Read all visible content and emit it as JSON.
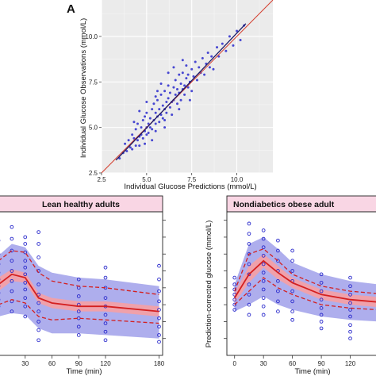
{
  "figure": {
    "panel_letter": "A"
  },
  "chart_data": [
    {
      "type": "scatter",
      "xlabel": "Individual Glucose Predictions (mmol/L)",
      "ylabel": "Individual Glucose Observations (mmol/L)",
      "xlim": [
        2.5,
        12.0
      ],
      "ylim": [
        2.5,
        12.0
      ],
      "xticks": [
        2.5,
        5.0,
        7.5,
        10.0
      ],
      "xtick_labels": [
        "2.5",
        "5.0",
        "7.5",
        "10.0"
      ],
      "yticks": [
        2.5,
        5.0,
        7.5,
        10.0
      ],
      "ytick_labels": [
        "2.5",
        "5.0",
        "7.5",
        "10.0"
      ],
      "background": "#ebebeb",
      "grid": true,
      "point_color": "#2a2acc",
      "identity_line_color": "#d43c2c",
      "trend_line_color": "#1a1a66",
      "points": [
        [
          3.5,
          3.3
        ],
        [
          3.7,
          3.6
        ],
        [
          3.8,
          4.1
        ],
        [
          3.9,
          3.7
        ],
        [
          4.0,
          4.3
        ],
        [
          4.1,
          3.9
        ],
        [
          4.2,
          4.6
        ],
        [
          4.2,
          3.8
        ],
        [
          4.3,
          4.4
        ],
        [
          4.4,
          4.0
        ],
        [
          4.4,
          4.9
        ],
        [
          4.5,
          4.3
        ],
        [
          4.5,
          5.2
        ],
        [
          4.6,
          4.5
        ],
        [
          4.6,
          4.0
        ],
        [
          4.7,
          5.0
        ],
        [
          4.7,
          4.6
        ],
        [
          4.8,
          5.4
        ],
        [
          4.8,
          4.4
        ],
        [
          4.9,
          4.8
        ],
        [
          4.9,
          5.6
        ],
        [
          5.0,
          5.0
        ],
        [
          5.0,
          4.6
        ],
        [
          5.0,
          5.8
        ],
        [
          5.1,
          5.2
        ],
        [
          5.1,
          4.7
        ],
        [
          5.2,
          5.5
        ],
        [
          5.2,
          5.0
        ],
        [
          5.3,
          6.0
        ],
        [
          5.3,
          4.9
        ],
        [
          5.4,
          5.4
        ],
        [
          5.4,
          6.3
        ],
        [
          5.5,
          5.2
        ],
        [
          5.5,
          5.8
        ],
        [
          5.5,
          4.8
        ],
        [
          5.6,
          5.6
        ],
        [
          5.6,
          6.5
        ],
        [
          5.7,
          5.3
        ],
        [
          5.7,
          6.0
        ],
        [
          5.8,
          5.7
        ],
        [
          5.8,
          6.8
        ],
        [
          5.9,
          5.5
        ],
        [
          5.9,
          6.2
        ],
        [
          6.0,
          6.0
        ],
        [
          6.0,
          7.0
        ],
        [
          6.0,
          5.4
        ],
        [
          6.1,
          6.4
        ],
        [
          6.1,
          5.8
        ],
        [
          6.2,
          6.6
        ],
        [
          6.2,
          7.3
        ],
        [
          6.3,
          6.1
        ],
        [
          6.3,
          6.9
        ],
        [
          6.4,
          6.4
        ],
        [
          6.4,
          5.7
        ],
        [
          6.5,
          7.2
        ],
        [
          6.5,
          6.5
        ],
        [
          6.6,
          6.8
        ],
        [
          6.6,
          7.6
        ],
        [
          6.7,
          6.3
        ],
        [
          6.7,
          7.1
        ],
        [
          6.8,
          6.9
        ],
        [
          6.8,
          7.9
        ],
        [
          6.9,
          7.4
        ],
        [
          6.9,
          6.5
        ],
        [
          7.0,
          7.1
        ],
        [
          7.0,
          8.0
        ],
        [
          7.1,
          7.3
        ],
        [
          7.1,
          6.8
        ],
        [
          7.2,
          7.7
        ],
        [
          7.2,
          8.4
        ],
        [
          7.3,
          7.2
        ],
        [
          7.3,
          7.9
        ],
        [
          7.4,
          7.5
        ],
        [
          7.5,
          8.2
        ],
        [
          7.5,
          7.0
        ],
        [
          7.6,
          7.8
        ],
        [
          7.7,
          8.6
        ],
        [
          7.8,
          7.6
        ],
        [
          7.9,
          8.3
        ],
        [
          8.0,
          8.0
        ],
        [
          8.1,
          8.8
        ],
        [
          8.2,
          7.9
        ],
        [
          8.3,
          8.5
        ],
        [
          8.4,
          9.1
        ],
        [
          8.5,
          8.3
        ],
        [
          8.6,
          8.9
        ],
        [
          8.7,
          8.2
        ],
        [
          8.9,
          9.4
        ],
        [
          9.0,
          8.9
        ],
        [
          9.2,
          9.6
        ],
        [
          9.4,
          9.2
        ],
        [
          9.6,
          10.0
        ],
        [
          9.8,
          9.5
        ],
        [
          10.0,
          10.3
        ],
        [
          10.2,
          9.8
        ],
        [
          10.4,
          10.6
        ],
        [
          5.0,
          6.4
        ],
        [
          5.6,
          7.0
        ],
        [
          6.2,
          8.0
        ],
        [
          4.6,
          5.9
        ],
        [
          5.3,
          4.3
        ],
        [
          6.0,
          5.0
        ],
        [
          6.8,
          6.0
        ],
        [
          7.4,
          6.5
        ],
        [
          4.3,
          5.3
        ],
        [
          5.8,
          7.4
        ],
        [
          6.5,
          8.3
        ],
        [
          7.0,
          8.7
        ],
        [
          4.9,
          4.1
        ],
        [
          5.5,
          6.7
        ]
      ],
      "trend_line": [
        [
          3.3,
          3.2
        ],
        [
          10.5,
          10.7
        ]
      ]
    },
    {
      "type": "line",
      "title": "Lean healthy adults",
      "xlabel": "Time (min)",
      "ylabel": "",
      "x": [
        0,
        15,
        30,
        45,
        60,
        90,
        120,
        180
      ],
      "xticks": [
        30,
        60,
        90,
        120,
        180
      ],
      "xtick_labels": [
        "30",
        "60",
        "90",
        "120",
        "180"
      ],
      "xlim": [
        0,
        184
      ],
      "ylim": [
        2.0,
        10.5
      ],
      "strip_fill": "#f9d6e4",
      "band_color": "#9a9ae8",
      "median_band_color": "#f2a0a8",
      "line_color": "#d42020",
      "point_color": "#2a2acc",
      "series": [
        {
          "values": [
            6.2,
            6.8,
            6.6,
            5.4,
            5.1,
            4.9,
            4.9,
            4.6
          ]
        },
        {
          "values": [
            7.6,
            8.2,
            8.1,
            6.9,
            6.4,
            6.1,
            6.0,
            5.6
          ]
        },
        {
          "values": [
            5.0,
            5.3,
            5.1,
            4.3,
            4.1,
            4.2,
            4.1,
            3.9
          ]
        },
        {
          "values": [
            7.9,
            8.6,
            8.4,
            7.3,
            6.9,
            6.6,
            6.5,
            6.1
          ]
        },
        {
          "values": [
            4.3,
            4.5,
            4.4,
            3.6,
            3.3,
            3.3,
            3.2,
            3.0
          ]
        },
        {
          "values": [
            6.6,
            7.1,
            6.9,
            5.7,
            5.4,
            5.2,
            5.2,
            4.9
          ]
        },
        {
          "values": [
            5.8,
            6.4,
            6.3,
            5.1,
            4.8,
            4.6,
            4.6,
            4.3
          ]
        }
      ],
      "points": [
        [
          0,
          8.8
        ],
        [
          0,
          8.0
        ],
        [
          0,
          7.4
        ],
        [
          0,
          6.9
        ],
        [
          0,
          6.5
        ],
        [
          0,
          6.1
        ],
        [
          0,
          5.7
        ],
        [
          0,
          5.3
        ],
        [
          0,
          4.9
        ],
        [
          15,
          9.6
        ],
        [
          15,
          8.9
        ],
        [
          15,
          8.2
        ],
        [
          15,
          7.6
        ],
        [
          15,
          7.0
        ],
        [
          15,
          6.4
        ],
        [
          15,
          5.8
        ],
        [
          15,
          5.2
        ],
        [
          15,
          4.6
        ],
        [
          30,
          9.0
        ],
        [
          30,
          8.6
        ],
        [
          30,
          8.1
        ],
        [
          30,
          7.6
        ],
        [
          30,
          7.2
        ],
        [
          30,
          6.8
        ],
        [
          30,
          6.3
        ],
        [
          30,
          5.9
        ],
        [
          30,
          5.4
        ],
        [
          30,
          4.9
        ],
        [
          30,
          4.3
        ],
        [
          45,
          9.3
        ],
        [
          45,
          8.6
        ],
        [
          45,
          7.8
        ],
        [
          45,
          7.0
        ],
        [
          45,
          6.2
        ],
        [
          45,
          5.6
        ],
        [
          45,
          5.1
        ],
        [
          45,
          4.6
        ],
        [
          45,
          4.0
        ],
        [
          45,
          3.5
        ],
        [
          45,
          2.9
        ],
        [
          90,
          6.5
        ],
        [
          90,
          6.0
        ],
        [
          90,
          5.5
        ],
        [
          90,
          5.0
        ],
        [
          90,
          4.6
        ],
        [
          90,
          4.2
        ],
        [
          90,
          3.7
        ],
        [
          90,
          3.2
        ],
        [
          120,
          7.2
        ],
        [
          120,
          6.6
        ],
        [
          120,
          6.0
        ],
        [
          120,
          5.4
        ],
        [
          120,
          4.9
        ],
        [
          120,
          4.4
        ],
        [
          120,
          3.9
        ],
        [
          120,
          3.4
        ],
        [
          120,
          2.9
        ],
        [
          180,
          7.3
        ],
        [
          180,
          6.5
        ],
        [
          180,
          5.8
        ],
        [
          180,
          5.2
        ],
        [
          180,
          4.7
        ],
        [
          180,
          4.2
        ],
        [
          180,
          3.7
        ],
        [
          180,
          3.2
        ],
        [
          180,
          2.8
        ]
      ]
    },
    {
      "type": "line",
      "title": "Nondiabetics obese adult",
      "xlabel": "Time (min)",
      "ylabel": "Prediction-corrected glucose (mmol/L)",
      "x": [
        0,
        15,
        30,
        45,
        60,
        90,
        120,
        180
      ],
      "xticks": [
        0,
        30,
        60,
        90,
        120
      ],
      "xtick_labels": [
        "0",
        "30",
        "60",
        "90",
        "120"
      ],
      "xlim": [
        -8,
        150
      ],
      "ylim": [
        2.0,
        10.5
      ],
      "strip_fill": "#f9d6e4",
      "band_color": "#9a9ae8",
      "median_band_color": "#f2a0a8",
      "line_color": "#d42020",
      "point_color": "#2a2acc",
      "series": [
        {
          "values": [
            5.4,
            6.8,
            7.6,
            6.9,
            6.3,
            5.6,
            5.3,
            5.0
          ]
        },
        {
          "values": [
            5.8,
            8.0,
            8.3,
            7.6,
            6.8,
            6.1,
            5.8,
            5.5
          ]
        },
        {
          "values": [
            5.0,
            5.8,
            6.6,
            6.0,
            5.6,
            5.0,
            4.8,
            4.6
          ]
        },
        {
          "values": [
            6.2,
            8.6,
            9.0,
            8.3,
            7.5,
            6.8,
            6.4,
            6.0
          ]
        },
        {
          "values": [
            4.6,
            5.0,
            5.5,
            5.0,
            4.7,
            4.3,
            4.1,
            3.9
          ]
        },
        {
          "values": [
            5.7,
            7.3,
            8.0,
            7.3,
            6.6,
            5.9,
            5.6,
            5.3
          ]
        },
        {
          "values": [
            5.1,
            6.3,
            7.2,
            6.5,
            6.0,
            5.3,
            5.0,
            4.7
          ]
        }
      ],
      "points": [
        [
          0,
          6.6
        ],
        [
          0,
          6.2
        ],
        [
          0,
          5.9
        ],
        [
          0,
          5.6
        ],
        [
          0,
          5.3
        ],
        [
          0,
          5.0
        ],
        [
          0,
          4.7
        ],
        [
          15,
          9.8
        ],
        [
          15,
          9.2
        ],
        [
          15,
          8.6
        ],
        [
          15,
          8.0
        ],
        [
          15,
          7.4
        ],
        [
          15,
          6.8
        ],
        [
          15,
          6.2
        ],
        [
          15,
          5.6
        ],
        [
          15,
          5.0
        ],
        [
          15,
          4.4
        ],
        [
          30,
          9.4
        ],
        [
          30,
          8.9
        ],
        [
          30,
          8.4
        ],
        [
          30,
          7.9
        ],
        [
          30,
          7.4
        ],
        [
          30,
          6.9
        ],
        [
          30,
          6.4
        ],
        [
          30,
          5.9
        ],
        [
          30,
          5.4
        ],
        [
          30,
          4.9
        ],
        [
          30,
          4.4
        ],
        [
          45,
          8.8
        ],
        [
          45,
          8.2
        ],
        [
          45,
          7.6
        ],
        [
          45,
          7.0
        ],
        [
          45,
          6.4
        ],
        [
          45,
          5.8
        ],
        [
          45,
          5.2
        ],
        [
          45,
          4.6
        ],
        [
          60,
          8.2
        ],
        [
          60,
          7.6
        ],
        [
          60,
          7.0
        ],
        [
          60,
          6.4
        ],
        [
          60,
          5.8
        ],
        [
          60,
          5.2
        ],
        [
          60,
          4.6
        ],
        [
          60,
          4.1
        ],
        [
          90,
          6.8
        ],
        [
          90,
          6.3
        ],
        [
          90,
          5.8
        ],
        [
          90,
          5.3
        ],
        [
          90,
          4.8
        ],
        [
          90,
          4.4
        ],
        [
          90,
          4.0
        ],
        [
          90,
          3.6
        ],
        [
          120,
          6.6
        ],
        [
          120,
          6.1
        ],
        [
          120,
          5.6
        ],
        [
          120,
          5.1
        ],
        [
          120,
          4.7
        ],
        [
          120,
          4.3
        ],
        [
          120,
          3.8
        ],
        [
          120,
          3.4
        ],
        [
          120,
          3.0
        ]
      ]
    }
  ]
}
